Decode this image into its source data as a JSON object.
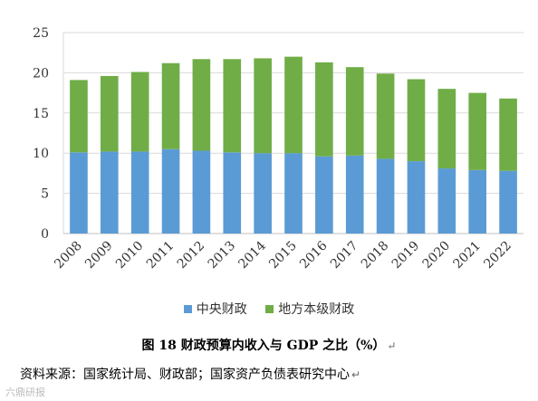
{
  "chart_data": {
    "type": "bar",
    "stacked": true,
    "categories": [
      "2008",
      "2009",
      "2010",
      "2011",
      "2012",
      "2013",
      "2014",
      "2015",
      "2016",
      "2017",
      "2018",
      "2019",
      "2020",
      "2021",
      "2022"
    ],
    "series": [
      {
        "name": "中央财政",
        "color": "#5b9bd5",
        "values": [
          10.1,
          10.2,
          10.2,
          10.5,
          10.3,
          10.1,
          10.0,
          10.0,
          9.6,
          9.7,
          9.3,
          9.0,
          8.1,
          7.9,
          7.8
        ]
      },
      {
        "name": "地方本级财政",
        "color": "#70ad47",
        "values": [
          9.0,
          9.4,
          9.9,
          10.7,
          11.4,
          11.6,
          11.8,
          12.0,
          11.7,
          11.0,
          10.6,
          10.2,
          9.9,
          9.6,
          9.0
        ]
      }
    ],
    "ylim": [
      0,
      25
    ],
    "yticks": [
      0,
      5,
      10,
      15,
      20,
      25
    ],
    "grid": true,
    "legend_position": "bottom"
  },
  "caption": {
    "title": "图 18 财政预算内收入与 GDP 之比（%）",
    "para_mark": "↵"
  },
  "source": {
    "text": "资料来源：国家统计局、财政部；国家资产负债表研究中心",
    "para_mark": "↵"
  },
  "watermark": {
    "text": "六鼎研报"
  }
}
